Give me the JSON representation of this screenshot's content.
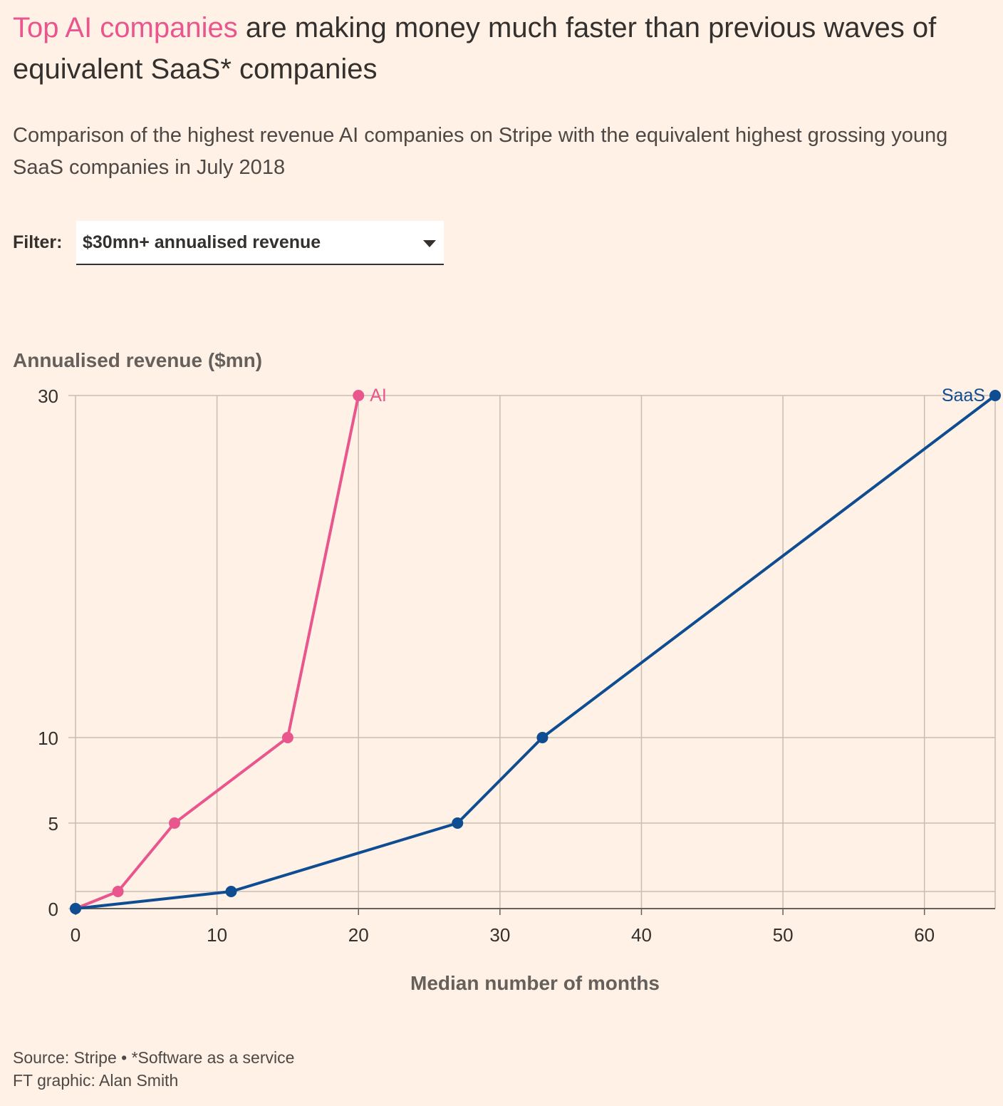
{
  "title": {
    "highlight": "Top AI companies",
    "rest": " are making money much faster than previous waves of equivalent SaaS* companies"
  },
  "subtitle": "Comparison of the highest revenue AI companies on Stripe with the equivalent highest grossing young SaaS companies in July 2018",
  "filter": {
    "label": "Filter:",
    "selected": "$30mn+ annualised revenue"
  },
  "colors": {
    "background": "#fff1e5",
    "ai": "#e9568e",
    "saas": "#0f4d92",
    "grid": "#c9bdb3",
    "axis": "#66605c"
  },
  "chart_data": {
    "type": "line",
    "ylabel": "Annualised revenue ($mn)",
    "xlabel": "Median number of months",
    "x_ticks": [
      0,
      10,
      20,
      30,
      40,
      50,
      60
    ],
    "y_ticks": [
      0,
      5,
      10,
      30
    ],
    "xlim": [
      0,
      65
    ],
    "ylim": [
      0,
      30
    ],
    "grid": true,
    "series": [
      {
        "name": "AI",
        "color": "#e9568e",
        "points": [
          {
            "x": 0,
            "y": 0
          },
          {
            "x": 3,
            "y": 1
          },
          {
            "x": 7,
            "y": 5
          },
          {
            "x": 15,
            "y": 10
          },
          {
            "x": 20,
            "y": 30
          }
        ]
      },
      {
        "name": "SaaS",
        "color": "#0f4d92",
        "points": [
          {
            "x": 0,
            "y": 0
          },
          {
            "x": 11,
            "y": 1
          },
          {
            "x": 27,
            "y": 5
          },
          {
            "x": 33,
            "y": 10
          },
          {
            "x": 65,
            "y": 30
          }
        ]
      }
    ]
  },
  "source": {
    "line1": "Source: Stripe • *Software as a service",
    "line2": "FT graphic: Alan Smith"
  }
}
